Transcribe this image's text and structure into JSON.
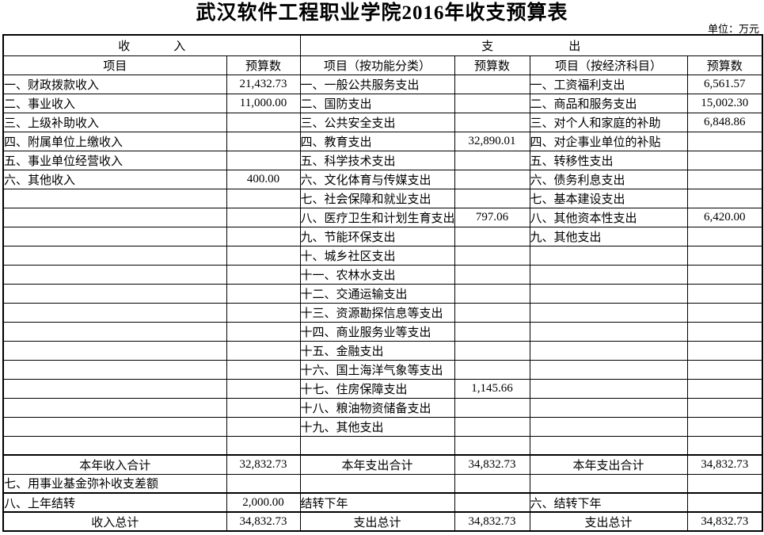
{
  "page": {
    "title": "武汉软件工程职业学院2016年收支预算表",
    "unit_label": "单位：万元"
  },
  "table": {
    "group_headers": {
      "income": "收入",
      "expenditure": "支出"
    },
    "column_headers": [
      "项目",
      "预算数",
      "项目（按功能分类）",
      "预算数",
      "项目（按经济科目）",
      "预算数"
    ],
    "rows": [
      {
        "kind": "item",
        "cells": [
          "一、财政拨款收入",
          "21,432.73",
          "一、一般公共服务支出",
          "",
          "一、工资福利支出",
          "6,561.57"
        ]
      },
      {
        "kind": "item",
        "cells": [
          "二、事业收入",
          "11,000.00",
          "二、国防支出",
          "",
          "二、商品和服务支出",
          "15,002.30"
        ]
      },
      {
        "kind": "item",
        "cells": [
          "三、上级补助收入",
          "",
          "三、公共安全支出",
          "",
          "三、对个人和家庭的补助",
          "6,848.86"
        ]
      },
      {
        "kind": "item",
        "cells": [
          "四、附属单位上缴收入",
          "",
          "四、教育支出",
          "32,890.01",
          "四、对企事业单位的补贴",
          ""
        ]
      },
      {
        "kind": "item",
        "cells": [
          "五、事业单位经营收入",
          "",
          "五、科学技术支出",
          "",
          "五、转移性支出",
          ""
        ]
      },
      {
        "kind": "item",
        "cells": [
          "六、其他收入",
          "400.00",
          "六、文化体育与传媒支出",
          "",
          "六、债务利息支出",
          ""
        ]
      },
      {
        "kind": "item",
        "cells": [
          "",
          "",
          "七、社会保障和就业支出",
          "",
          "七、基本建设支出",
          ""
        ]
      },
      {
        "kind": "item",
        "cells": [
          "",
          "",
          "八、医疗卫生和计划生育支出",
          "797.06",
          "八、其他资本性支出",
          "6,420.00"
        ]
      },
      {
        "kind": "item",
        "cells": [
          "",
          "",
          "九、节能环保支出",
          "",
          "九、其他支出",
          ""
        ]
      },
      {
        "kind": "item",
        "cells": [
          "",
          "",
          "十、城乡社区支出",
          "",
          "",
          ""
        ]
      },
      {
        "kind": "item",
        "cells": [
          "",
          "",
          "十一、农林水支出",
          "",
          "",
          ""
        ]
      },
      {
        "kind": "item",
        "cells": [
          "",
          "",
          "十二、交通运输支出",
          "",
          "",
          ""
        ]
      },
      {
        "kind": "item",
        "cells": [
          "",
          "",
          "十三、资源勘探信息等支出",
          "",
          "",
          ""
        ]
      },
      {
        "kind": "item",
        "cells": [
          "",
          "",
          "十四、商业服务业等支出",
          "",
          "",
          ""
        ]
      },
      {
        "kind": "item",
        "cells": [
          "",
          "",
          "十五、金融支出",
          "",
          "",
          ""
        ]
      },
      {
        "kind": "item",
        "cells": [
          "",
          "",
          "十六、国土海洋气象等支出",
          "",
          "",
          ""
        ]
      },
      {
        "kind": "item",
        "cells": [
          "",
          "",
          "十七、住房保障支出",
          "1,145.66",
          "",
          ""
        ]
      },
      {
        "kind": "item",
        "cells": [
          "",
          "",
          "十八、粮油物资储备支出",
          "",
          "",
          ""
        ]
      },
      {
        "kind": "item",
        "cells": [
          "",
          "",
          "十九、其他支出",
          "",
          "",
          ""
        ]
      },
      {
        "kind": "item",
        "cells": [
          "",
          "",
          "",
          "",
          "",
          ""
        ]
      },
      {
        "kind": "subtotal",
        "cells": [
          "本年收入合计",
          "32,832.73",
          "本年支出合计",
          "34,832.73",
          "本年支出合计",
          "34,832.73"
        ]
      },
      {
        "kind": "item",
        "cells": [
          "七、用事业基金弥补收支差额",
          "",
          "",
          "",
          "",
          ""
        ]
      },
      {
        "kind": "carryover",
        "cells": [
          "八、上年结转",
          "2,000.00",
          "结转下年",
          "",
          "六、结转下年",
          ""
        ]
      },
      {
        "kind": "total",
        "cells": [
          "收入总计",
          "34,832.73",
          "支出总计",
          "34,832.73",
          "支出总计",
          "34,832.73"
        ]
      }
    ]
  }
}
